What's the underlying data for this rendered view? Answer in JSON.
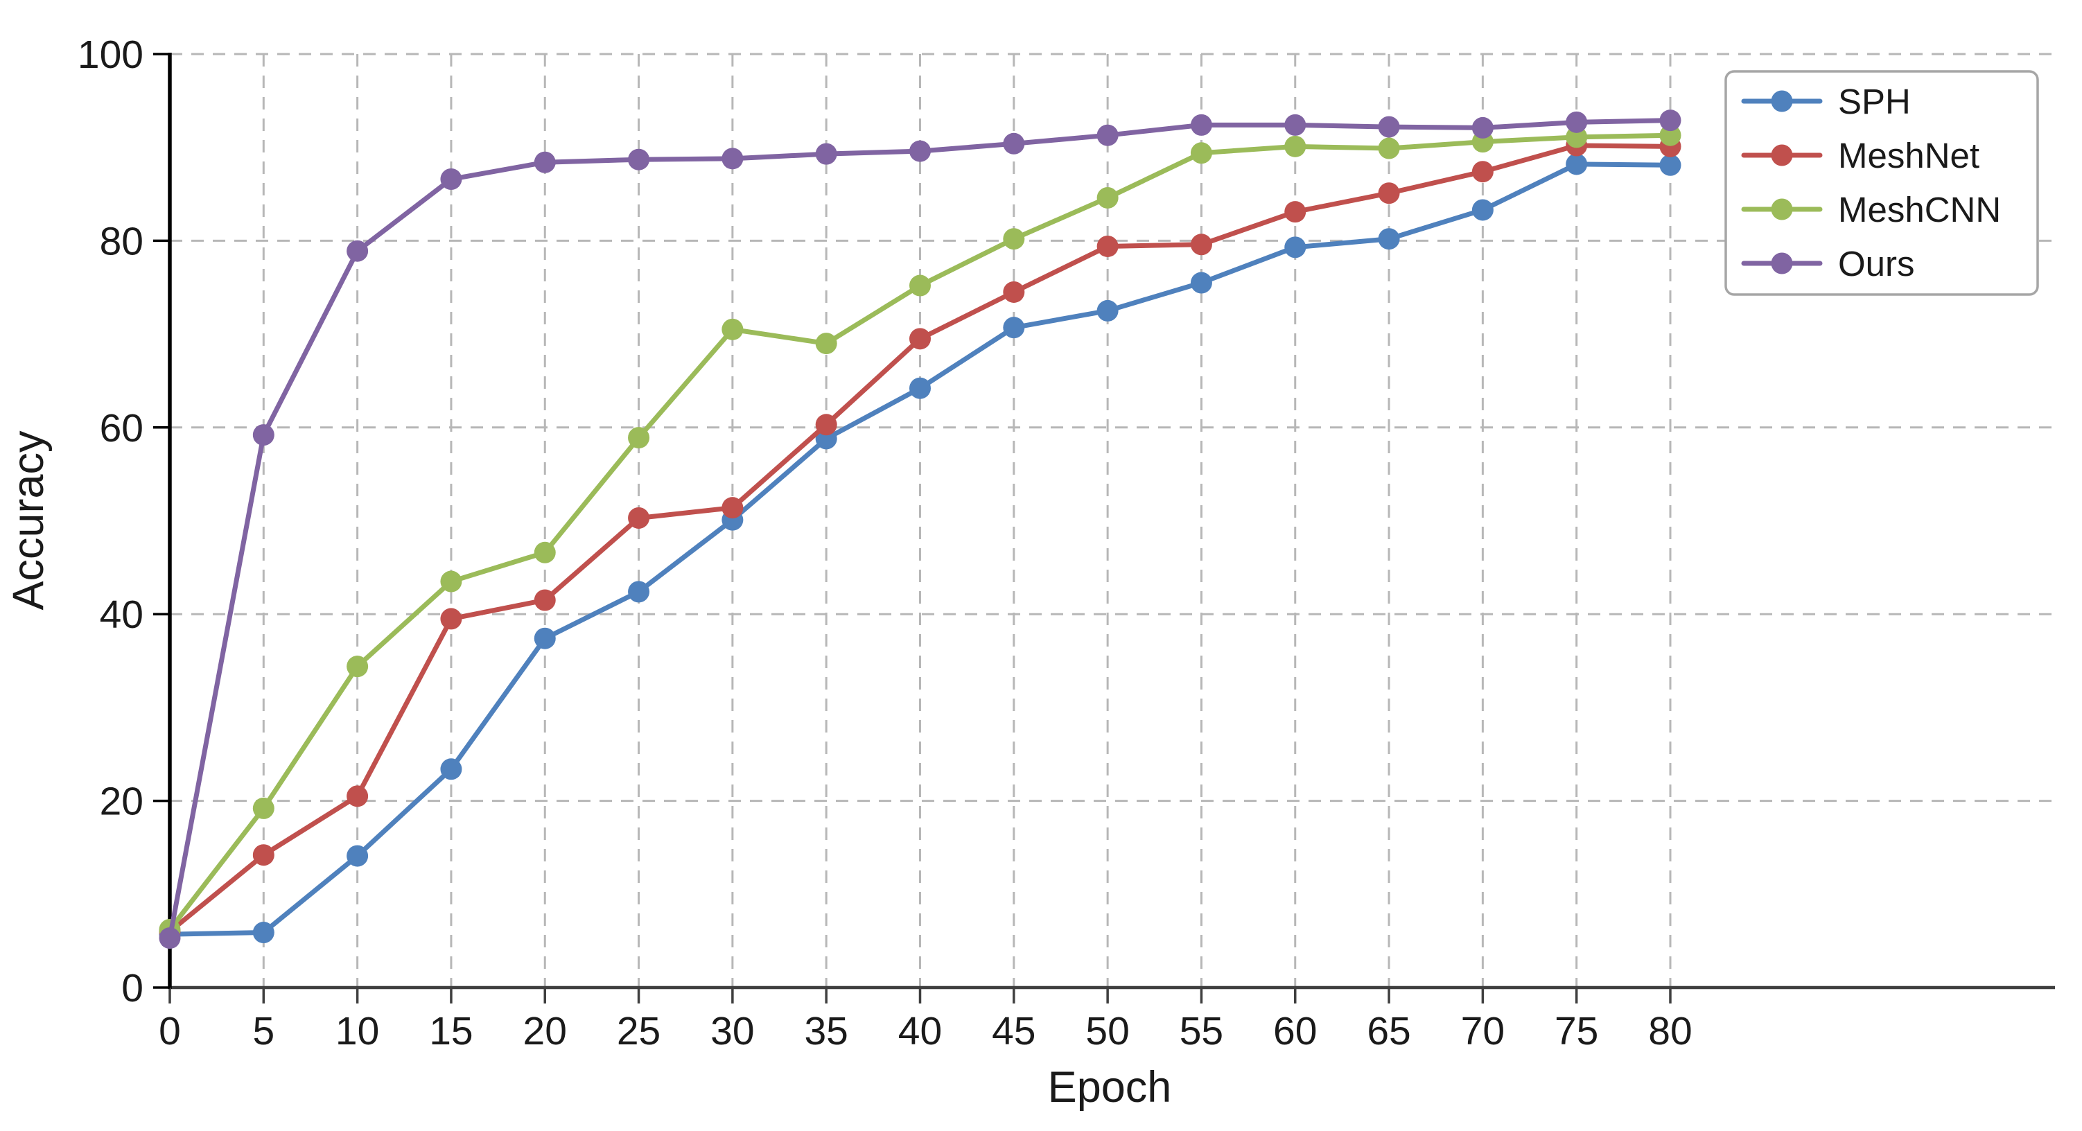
{
  "chart_data": {
    "type": "line",
    "title": "",
    "xlabel": "Epoch",
    "ylabel": "Accuracy",
    "x": [
      0,
      5,
      10,
      15,
      20,
      25,
      30,
      35,
      40,
      45,
      50,
      55,
      60,
      65,
      70,
      75,
      80
    ],
    "series": [
      {
        "name": "SPH",
        "color": "#4f81bd",
        "values": [
          5.7,
          5.9,
          14.1,
          23.4,
          37.4,
          42.4,
          50.1,
          58.8,
          64.2,
          70.7,
          72.5,
          75.5,
          79.3,
          80.2,
          83.3,
          88.2,
          88.1
        ]
      },
      {
        "name": "MeshNet",
        "color": "#c0504d",
        "values": [
          6.0,
          14.2,
          20.5,
          39.5,
          41.5,
          50.3,
          51.4,
          60.3,
          69.5,
          74.5,
          79.4,
          79.6,
          83.1,
          85.1,
          87.4,
          90.2,
          90.1
        ]
      },
      {
        "name": "MeshCNN",
        "color": "#9bbb59",
        "values": [
          6.2,
          19.2,
          34.4,
          43.5,
          46.6,
          58.9,
          70.5,
          69.0,
          75.2,
          80.2,
          84.6,
          89.4,
          90.1,
          89.9,
          90.6,
          91.1,
          91.3
        ]
      },
      {
        "name": "Ours",
        "color": "#8064a2",
        "values": [
          5.3,
          59.2,
          78.9,
          86.6,
          88.4,
          88.7,
          88.8,
          89.3,
          89.6,
          90.4,
          91.3,
          92.4,
          92.4,
          92.2,
          92.1,
          92.7,
          92.9
        ]
      }
    ],
    "xticks": [
      0,
      5,
      10,
      15,
      20,
      25,
      30,
      35,
      40,
      45,
      50,
      55,
      60,
      65,
      70,
      75,
      80
    ],
    "yticks": [
      0,
      20,
      40,
      60,
      80,
      100
    ],
    "xlim": [
      0,
      100.5
    ],
    "ylim": [
      0,
      100
    ],
    "grid": true,
    "grid_style": "dashed",
    "legend_position": "upper right",
    "legend_labels": [
      "SPH",
      "MeshNet",
      "MeshCNN",
      "Ours"
    ]
  },
  "colors": {
    "background": "#ffffff",
    "grid": "#b7b7b7",
    "bottom_spine": "#3f3f3f",
    "left_spine": "#000000",
    "text": "#1a1a1a",
    "legend_border": "#a6a6a6",
    "legend_fill": "#ffffff"
  }
}
